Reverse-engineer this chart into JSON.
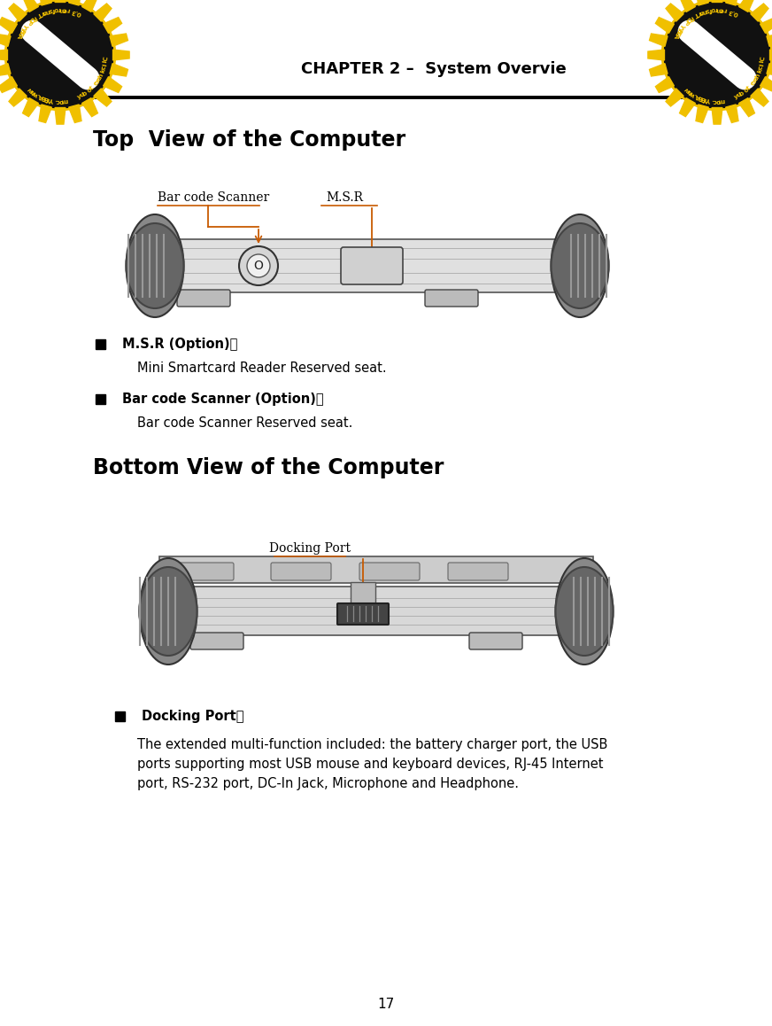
{
  "bg_color": "#ffffff",
  "header_text": "CHAPTER 2 –  System Overvie",
  "top_section_title": "Top  View of the Computer",
  "bottom_section_title": "Bottom View of the Computer",
  "label_bar_code": "Bar code Scanner",
  "label_msr": "M.S.R",
  "label_docking": "Docking Port",
  "bullet1_bold": "M.S.R (Option)：",
  "bullet1_normal": "Mini Smartcard Reader Reserved seat.",
  "bullet2_bold": "Bar code Scanner (Option)：",
  "bullet2_normal": "Bar code Scanner Reserved seat.",
  "bullet3_bold": "Docking Port：",
  "bullet3_normal1": "The extended multi-function included: the battery charger port, the USB",
  "bullet3_normal2": "ports supporting most USB mouse and keyboard devices, RJ-45 Internet",
  "bullet3_normal3": "port, RS-232 port, DC-In Jack, Microphone and Headphone.",
  "page_number": "17",
  "arrow_color": "#c85a00",
  "line_color": "#c85a00",
  "gear_yellow": "#f0c000",
  "gear_black": "#111111",
  "logo_text_color": "#f0c000"
}
